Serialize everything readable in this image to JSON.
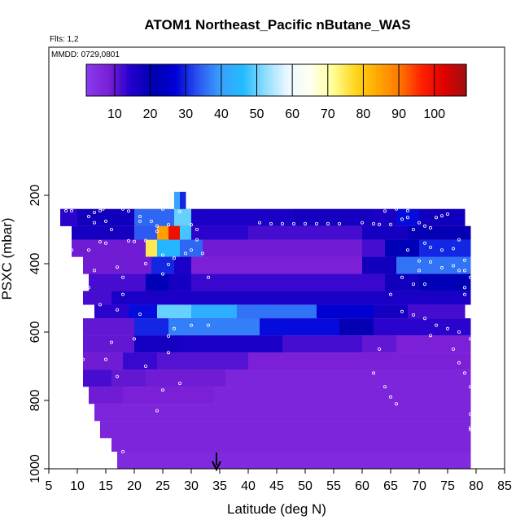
{
  "header": {
    "title": "ATOM1 Northeast_Pacific nButane_WAS",
    "flights": "Flts: 1,2",
    "dates": "MMDD: 0729,0801"
  },
  "colors": {
    "ramp": [
      "#8a3cf0",
      "#7a1fd6",
      "#2200cc",
      "#0000b0",
      "#0000d8",
      "#2a55f0",
      "#3aa0ff",
      "#22bbff",
      "#8fdcff",
      "#eaf8ff",
      "#fffff0",
      "#ffff9c",
      "#ffd820",
      "#ffaa00",
      "#ff7700",
      "#ff2200",
      "#e00000",
      "#a01010"
    ],
    "cell_background": "#7a1fd6",
    "sample_marker": "#ffffff"
  },
  "chart_data": {
    "type": "heatmap",
    "title": "ATOM1 Northeast_Pacific nButane_WAS",
    "xlabel": "Latitude (deg N)",
    "ylabel": "PSXC (mbar)",
    "xlim": [
      5,
      85
    ],
    "ylim": [
      1000,
      0
    ],
    "x_ticks": [
      5,
      10,
      15,
      20,
      25,
      30,
      35,
      40,
      45,
      50,
      55,
      60,
      65,
      70,
      75,
      80,
      85
    ],
    "y_ticks": [
      200,
      400,
      600,
      800,
      1000
    ],
    "colorbar": {
      "range": [
        2,
        109
      ],
      "ticks": [
        10,
        20,
        30,
        40,
        50,
        60,
        70,
        80,
        90,
        100
      ]
    },
    "marker_latitude": 35,
    "layers": [
      {
        "p_top": 240,
        "p_bot": 290,
        "lat_start": 7,
        "lat_end": 78,
        "segments": [
          [
            7,
            10,
            14
          ],
          [
            10,
            20,
            18
          ],
          [
            20,
            27,
            35
          ],
          [
            27,
            30,
            50
          ],
          [
            30,
            48,
            16
          ],
          [
            48,
            62,
            17
          ],
          [
            62,
            66,
            16
          ],
          [
            66,
            70,
            28
          ],
          [
            70,
            78,
            18
          ]
        ]
      },
      {
        "p_top": 290,
        "p_bot": 330,
        "lat_start": 9,
        "lat_end": 79,
        "segments": [
          [
            9,
            20,
            17
          ],
          [
            20,
            24,
            34
          ],
          [
            24,
            26,
            85
          ],
          [
            26,
            28,
            100
          ],
          [
            28,
            30,
            48
          ],
          [
            30,
            40,
            14
          ],
          [
            40,
            60,
            12
          ],
          [
            60,
            68,
            17
          ],
          [
            68,
            79,
            20
          ]
        ]
      },
      {
        "p_top": 330,
        "p_bot": 380,
        "lat_start": 9,
        "lat_end": 79,
        "segments": [
          [
            9,
            22,
            9
          ],
          [
            22,
            24,
            75
          ],
          [
            24,
            28,
            45
          ],
          [
            28,
            32,
            35
          ],
          [
            32,
            60,
            9
          ],
          [
            60,
            64,
            12
          ],
          [
            64,
            70,
            22
          ],
          [
            70,
            79,
            30
          ]
        ]
      },
      {
        "p_top": 380,
        "p_bot": 430,
        "lat_start": 11,
        "lat_end": 79,
        "segments": [
          [
            11,
            23,
            9
          ],
          [
            23,
            27,
            30
          ],
          [
            27,
            30,
            16
          ],
          [
            30,
            60,
            8
          ],
          [
            60,
            66,
            18
          ],
          [
            66,
            79,
            36
          ]
        ]
      },
      {
        "p_top": 430,
        "p_bot": 480,
        "lat_start": 12,
        "lat_end": 79,
        "segments": [
          [
            12,
            22,
            12
          ],
          [
            22,
            26,
            22
          ],
          [
            26,
            30,
            17
          ],
          [
            30,
            64,
            13
          ],
          [
            64,
            70,
            18
          ],
          [
            70,
            79,
            22
          ]
        ]
      },
      {
        "p_top": 480,
        "p_bot": 520,
        "lat_start": 11,
        "lat_end": 79,
        "segments": [
          [
            11,
            16,
            12
          ],
          [
            16,
            79,
            16
          ]
        ]
      },
      {
        "p_top": 520,
        "p_bot": 560,
        "lat_start": 13,
        "lat_end": 78,
        "segments": [
          [
            13,
            19,
            14
          ],
          [
            19,
            24,
            28
          ],
          [
            24,
            30,
            50
          ],
          [
            30,
            38,
            43
          ],
          [
            38,
            52,
            36
          ],
          [
            52,
            62,
            26
          ],
          [
            62,
            68,
            17
          ],
          [
            68,
            78,
            12
          ]
        ]
      },
      {
        "p_top": 560,
        "p_bot": 610,
        "lat_start": 11,
        "lat_end": 79,
        "segments": [
          [
            11,
            20,
            10
          ],
          [
            20,
            26,
            30
          ],
          [
            26,
            42,
            37
          ],
          [
            42,
            56,
            28
          ],
          [
            56,
            62,
            20
          ],
          [
            62,
            79,
            14
          ]
        ]
      },
      {
        "p_top": 610,
        "p_bot": 660,
        "lat_start": 11,
        "lat_end": 79,
        "segments": [
          [
            11,
            20,
            10
          ],
          [
            20,
            28,
            17
          ],
          [
            28,
            46,
            16
          ],
          [
            46,
            60,
            12
          ],
          [
            60,
            66,
            10
          ],
          [
            66,
            79,
            8
          ]
        ]
      },
      {
        "p_top": 660,
        "p_bot": 710,
        "lat_start": 11,
        "lat_end": 79,
        "segments": [
          [
            11,
            18,
            9
          ],
          [
            18,
            24,
            13
          ],
          [
            24,
            40,
            11
          ],
          [
            40,
            79,
            8
          ]
        ]
      },
      {
        "p_top": 710,
        "p_bot": 760,
        "lat_start": 11,
        "lat_end": 79,
        "segments": [
          [
            11,
            16,
            12
          ],
          [
            16,
            22,
            10
          ],
          [
            22,
            36,
            9
          ],
          [
            36,
            79,
            7
          ]
        ]
      },
      {
        "p_top": 760,
        "p_bot": 810,
        "lat_start": 12,
        "lat_end": 79,
        "segments": [
          [
            12,
            18,
            9
          ],
          [
            18,
            34,
            8
          ],
          [
            34,
            79,
            7
          ]
        ]
      },
      {
        "p_top": 810,
        "p_bot": 860,
        "lat_start": 13,
        "lat_end": 79,
        "segments": [
          [
            13,
            79,
            7
          ]
        ]
      },
      {
        "p_top": 860,
        "p_bot": 910,
        "lat_start": 14,
        "lat_end": 79,
        "segments": [
          [
            14,
            79,
            7
          ]
        ]
      },
      {
        "p_top": 910,
        "p_bot": 950,
        "lat_start": 16,
        "lat_end": 79,
        "segments": [
          [
            16,
            79,
            7
          ]
        ]
      },
      {
        "p_top": 950,
        "p_bot": 1000,
        "lat_start": 17,
        "lat_end": 79,
        "segments": [
          [
            17,
            79,
            6
          ]
        ]
      }
    ],
    "spike": {
      "lat_start": 26,
      "lat_end": 29,
      "p_top": 190,
      "p_bot": 240,
      "value": 62
    },
    "sample_points": [
      [
        8,
        245
      ],
      [
        9,
        245
      ],
      [
        12,
        262
      ],
      [
        13,
        250
      ],
      [
        14,
        245
      ],
      [
        14.5,
        240
      ],
      [
        13,
        280
      ],
      [
        15,
        276
      ],
      [
        16,
        300
      ],
      [
        18,
        240
      ],
      [
        19,
        246
      ],
      [
        21,
        262
      ],
      [
        21,
        276
      ],
      [
        23,
        276
      ],
      [
        24,
        290
      ],
      [
        25,
        240
      ],
      [
        26,
        286
      ],
      [
        28,
        248
      ],
      [
        30,
        286
      ],
      [
        31,
        300
      ],
      [
        34,
        234
      ],
      [
        22,
        332
      ],
      [
        24,
        305
      ],
      [
        25,
        375
      ],
      [
        29,
        370
      ],
      [
        30,
        360
      ],
      [
        31,
        330
      ],
      [
        9,
        360
      ],
      [
        12,
        360
      ],
      [
        14,
        336
      ],
      [
        15,
        340
      ],
      [
        19,
        333
      ],
      [
        20,
        335
      ],
      [
        13,
        420
      ],
      [
        17,
        410
      ],
      [
        22,
        400
      ],
      [
        26,
        402
      ],
      [
        27,
        384
      ],
      [
        25,
        430
      ],
      [
        32,
        370
      ],
      [
        33,
        440
      ],
      [
        18,
        440
      ],
      [
        9,
        460
      ],
      [
        12,
        470
      ],
      [
        18,
        490
      ],
      [
        14,
        520
      ],
      [
        17,
        535
      ],
      [
        21,
        548
      ],
      [
        27,
        590
      ],
      [
        30,
        580
      ],
      [
        33,
        580
      ],
      [
        26,
        612
      ],
      [
        20,
        620
      ],
      [
        16,
        630
      ],
      [
        15,
        680
      ],
      [
        11,
        680
      ],
      [
        10,
        720
      ],
      [
        17,
        730
      ],
      [
        22,
        700
      ],
      [
        25,
        770
      ],
      [
        26,
        660
      ],
      [
        28,
        750
      ],
      [
        24,
        830
      ],
      [
        18,
        950
      ],
      [
        42,
        280
      ],
      [
        44,
        283
      ],
      [
        46,
        283
      ],
      [
        48,
        283
      ],
      [
        50,
        283
      ],
      [
        52,
        283
      ],
      [
        54,
        283
      ],
      [
        56,
        283
      ],
      [
        60,
        280
      ],
      [
        62,
        283
      ],
      [
        63,
        285
      ],
      [
        65,
        285
      ],
      [
        67,
        270
      ],
      [
        68,
        265
      ],
      [
        70,
        280
      ],
      [
        71,
        290
      ],
      [
        72,
        295
      ],
      [
        73,
        265
      ],
      [
        74,
        260
      ],
      [
        75,
        255
      ],
      [
        64,
        246
      ],
      [
        66,
        240
      ],
      [
        68,
        245
      ],
      [
        69,
        300
      ],
      [
        71,
        340
      ],
      [
        72,
        352
      ],
      [
        74,
        360
      ],
      [
        76,
        356
      ],
      [
        77,
        330
      ],
      [
        68,
        360
      ],
      [
        70,
        392
      ],
      [
        72,
        395
      ],
      [
        74,
        412
      ],
      [
        76,
        406
      ],
      [
        77,
        420
      ],
      [
        67,
        440
      ],
      [
        69,
        460
      ],
      [
        71,
        460
      ],
      [
        70,
        420
      ],
      [
        78,
        390
      ],
      [
        78,
        420
      ],
      [
        79,
        440
      ],
      [
        78,
        470
      ],
      [
        78,
        490
      ],
      [
        65,
        490
      ],
      [
        67,
        540
      ],
      [
        69,
        550
      ],
      [
        71,
        560
      ],
      [
        73,
        580
      ],
      [
        75,
        590
      ],
      [
        77,
        600
      ],
      [
        79,
        620
      ],
      [
        76,
        650
      ],
      [
        77,
        690
      ],
      [
        78,
        720
      ],
      [
        79,
        760
      ],
      [
        79,
        840
      ],
      [
        79,
        880
      ],
      [
        79,
        885
      ],
      [
        62,
        720
      ],
      [
        64,
        760
      ],
      [
        65,
        790
      ],
      [
        66,
        810
      ],
      [
        63,
        650
      ],
      [
        72,
        610
      ]
    ]
  }
}
